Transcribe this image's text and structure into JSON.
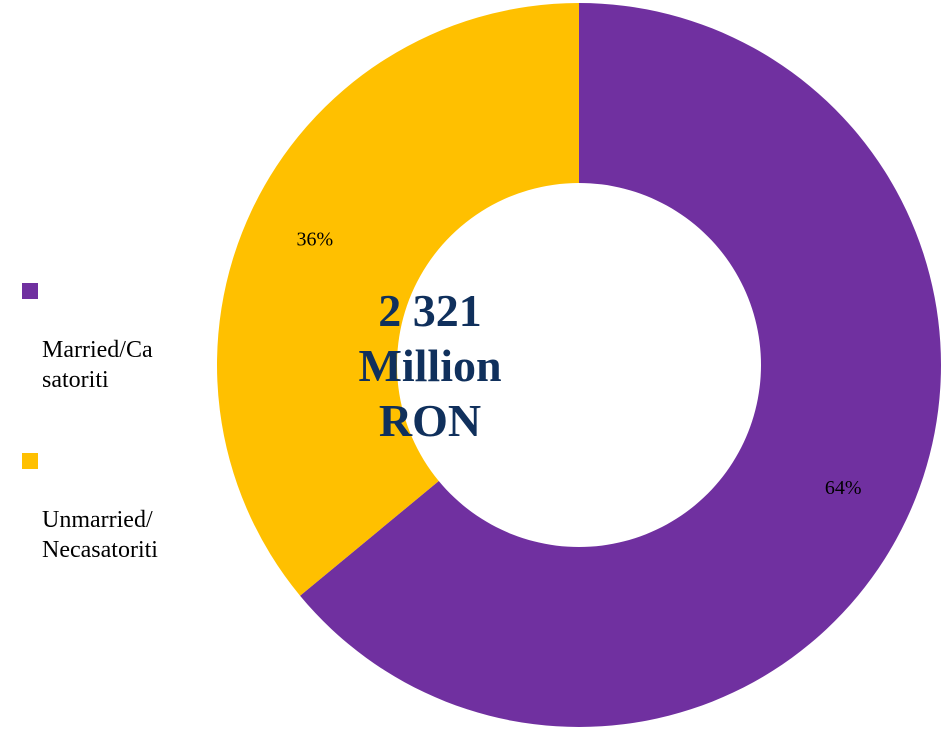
{
  "chart_data": {
    "type": "pie",
    "variant": "donut",
    "categories": [
      "Married/Casatoriti",
      "Unmarried/Necasatoriti"
    ],
    "values": [
      64,
      36
    ],
    "data_labels": [
      "64%",
      "36%"
    ],
    "colors": [
      "#7030a0",
      "#ffc000"
    ],
    "center_text": [
      "2 321",
      "Million",
      "RON"
    ],
    "legend": {
      "position": "left",
      "entries": [
        {
          "label": "Married/Ca\nsatoriti",
          "color": "#7030a0"
        },
        {
          "label": "Unmarried/\nNecasatoriti",
          "color": "#ffc000"
        }
      ]
    }
  }
}
